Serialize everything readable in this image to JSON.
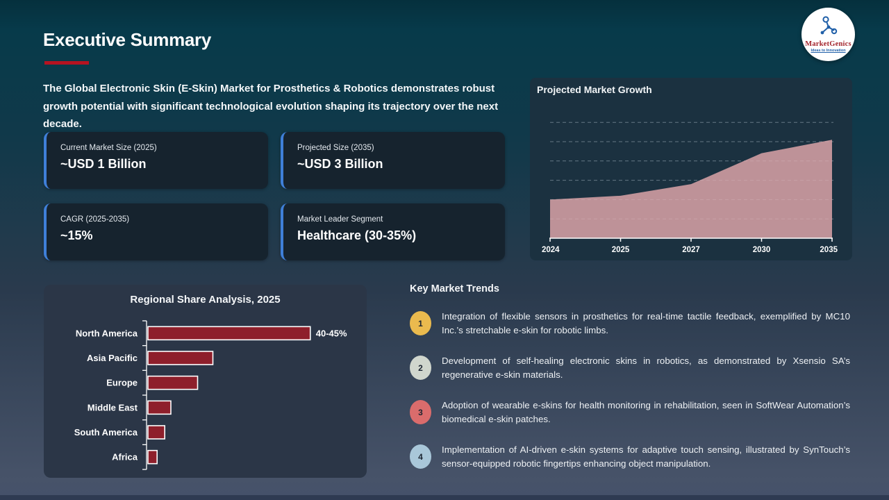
{
  "slide": {
    "title": "Executive Summary",
    "intro": "The Global Electronic Skin (E-Skin) Market for Prosthetics & Robotics demonstrates robust growth potential with significant technological evolution shaping its trajectory over the next decade.",
    "accent_color": "#b51321"
  },
  "logo": {
    "name": "MarketGenics",
    "tagline": "Ideas to Innovation"
  },
  "stat_cards": [
    {
      "label": "Current Market Size (2025)",
      "value": "~USD 1 Billion"
    },
    {
      "label": "Projected Size (2035)",
      "value": "~USD 3 Billion"
    },
    {
      "label": "CAGR (2025-2035)",
      "value": "~15%"
    },
    {
      "label": "Market Leader Segment",
      "value": "Healthcare (30-35%)"
    }
  ],
  "chart_data": [
    {
      "type": "area",
      "title": "Projected Market Growth",
      "x": [
        "2024",
        "2025",
        "2027",
        "2030",
        "2035"
      ],
      "values": [
        1.0,
        1.1,
        1.4,
        2.2,
        2.55
      ],
      "unit": "USD Billion",
      "ylim": [
        0,
        3.2
      ],
      "gridlines": [
        0.5,
        1.0,
        1.5,
        2.0,
        2.5,
        3.0
      ],
      "grid": "dashed",
      "legend": "none",
      "fill_color": "#c5969c",
      "axis_color": "#ffffff"
    },
    {
      "type": "bar",
      "orientation": "horizontal",
      "title": "Regional Share Analysis, 2025",
      "categories": [
        "North America",
        "Asia Pacific",
        "Europe",
        "Middle East",
        "South America",
        "Africa"
      ],
      "values": [
        42.5,
        17,
        13,
        6,
        4.4,
        2.4
      ],
      "data_labels": [
        "40-45%",
        "",
        "",
        "",
        "",
        ""
      ],
      "xlim": [
        0,
        50
      ],
      "grid": "off",
      "bar_color": "#8e1f2b",
      "bar_border_color": "#ffffff"
    }
  ],
  "trends": {
    "title": "Key Market Trends",
    "items": [
      {
        "number": "1",
        "color": "#eaba4e",
        "text": "Integration of flexible sensors in prosthetics for real-time tactile feedback, exemplified by MC10 Inc.’s stretchable e-skin for robotic limbs."
      },
      {
        "number": "2",
        "color": "#d0d6cd",
        "text": "Development of self-healing electronic skins in robotics, as demonstrated by Xsensio SA’s regenerative e-skin materials."
      },
      {
        "number": "3",
        "color": "#da6c6c",
        "text": "Adoption of wearable e-skins for health monitoring in rehabilitation, seen in SoftWear Automation’s biomedical e-skin patches."
      },
      {
        "number": "4",
        "color": "#a9c7d9",
        "text": "Implementation of AI-driven e-skin systems for adaptive touch sensing, illustrated by SynTouch’s sensor-equipped robotic fingertips enhancing object manipulation."
      }
    ]
  }
}
